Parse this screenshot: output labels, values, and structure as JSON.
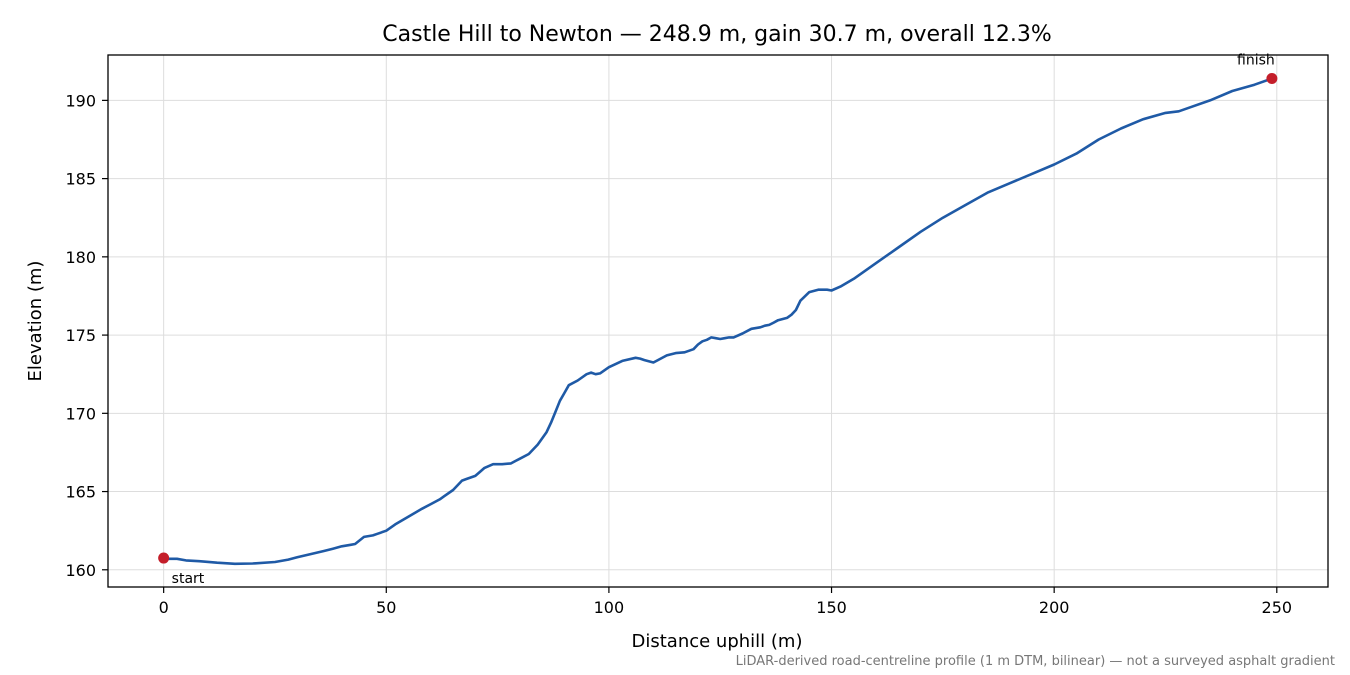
{
  "chart_data": {
    "type": "line",
    "title": "Castle Hill to Newton — 248.9 m, gain 30.7 m, overall 12.3%",
    "xlabel": "Distance uphill (m)",
    "ylabel": "Elevation (m)",
    "xlim": [
      -12.5,
      261.5
    ],
    "ylim": [
      158.9,
      192.9
    ],
    "xticks": [
      0,
      50,
      100,
      150,
      200,
      250
    ],
    "yticks": [
      160,
      165,
      170,
      175,
      180,
      185,
      190
    ],
    "grid": true,
    "series": [
      {
        "color": "#1f5aa6",
        "x": [
          0,
          3,
          5,
          8,
          12,
          16,
          20,
          25,
          28,
          30,
          33,
          36,
          38,
          40,
          42,
          43,
          45,
          47,
          48,
          50,
          52,
          55,
          58,
          60,
          62,
          63,
          65,
          67,
          68,
          70,
          71,
          72,
          74,
          76,
          78,
          79,
          80,
          82,
          84,
          86,
          87,
          88,
          89,
          90,
          91,
          93,
          95,
          96,
          97,
          98,
          100,
          103,
          106,
          107,
          108,
          110,
          111,
          113,
          115,
          117,
          119,
          120,
          121,
          122,
          123,
          124,
          125,
          126,
          127,
          128,
          130,
          132,
          134,
          135,
          136,
          137,
          138,
          140,
          141,
          142,
          143,
          145,
          147,
          149,
          150,
          152,
          155,
          160,
          165,
          170,
          175,
          180,
          185,
          190,
          195,
          200,
          205,
          210,
          215,
          220,
          225,
          228,
          230,
          235,
          240,
          245,
          248.9
        ],
        "y": [
          160.7,
          160.7,
          160.6,
          160.55,
          160.45,
          160.38,
          160.4,
          160.5,
          160.65,
          160.8,
          161.0,
          161.2,
          161.35,
          161.5,
          161.6,
          161.65,
          162.1,
          162.2,
          162.3,
          162.5,
          162.9,
          163.4,
          163.9,
          164.2,
          164.5,
          164.7,
          165.1,
          165.7,
          165.8,
          166.0,
          166.25,
          166.5,
          166.75,
          166.75,
          166.8,
          166.95,
          167.1,
          167.4,
          168.0,
          168.8,
          169.4,
          170.1,
          170.8,
          171.3,
          171.8,
          172.1,
          172.5,
          172.6,
          172.5,
          172.55,
          172.95,
          173.35,
          173.55,
          173.5,
          173.4,
          173.25,
          173.4,
          173.7,
          173.85,
          173.9,
          174.1,
          174.4,
          174.6,
          174.7,
          174.85,
          174.8,
          174.75,
          174.8,
          174.85,
          174.85,
          175.1,
          175.4,
          175.5,
          175.6,
          175.65,
          175.8,
          175.95,
          176.1,
          176.3,
          176.6,
          177.2,
          177.75,
          177.9,
          177.9,
          177.85,
          178.1,
          178.6,
          179.6,
          180.6,
          181.6,
          182.5,
          183.3,
          184.1,
          184.7,
          185.3,
          185.9,
          186.6,
          187.5,
          188.2,
          188.8,
          189.2,
          189.3,
          189.5,
          190.0,
          190.6,
          191.0,
          191.4
        ]
      }
    ],
    "markers": [
      {
        "label": "start",
        "x": 0,
        "y": 160.75,
        "color": "#c41e2a"
      },
      {
        "label": "finish",
        "x": 248.9,
        "y": 191.4,
        "color": "#c41e2a"
      }
    ],
    "footnote": "LiDAR-derived road-centreline profile (1 m DTM, bilinear) — not a surveyed asphalt gradient"
  }
}
